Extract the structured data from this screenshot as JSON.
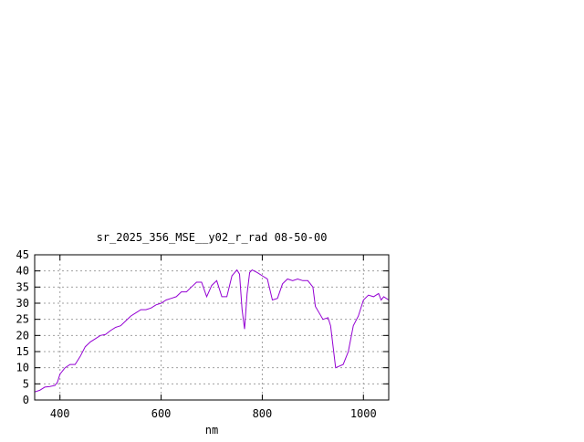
{
  "chart_data": {
    "type": "line",
    "title": "sr_2025_356_MSE__y02_r_rad 08-50-00",
    "xlabel": "nm",
    "ylabel": "",
    "xlim": [
      350,
      1050
    ],
    "ylim": [
      0,
      45
    ],
    "xticks": [
      400,
      600,
      800,
      1000
    ],
    "yticks": [
      0,
      5,
      10,
      15,
      20,
      25,
      30,
      35,
      40,
      45
    ],
    "grid": true,
    "line_color": "#9400d3",
    "series": [
      {
        "x": [
          350,
          360,
          370,
          380,
          390,
          395,
          400,
          410,
          420,
          430,
          440,
          450,
          460,
          470,
          480,
          490,
          500,
          510,
          520,
          530,
          540,
          550,
          560,
          570,
          580,
          590,
          600,
          610,
          620,
          630,
          640,
          650,
          660,
          670,
          680,
          690,
          700,
          710,
          720,
          730,
          740,
          750,
          755,
          760,
          765,
          770,
          775,
          780,
          790,
          800,
          810,
          820,
          830,
          840,
          850,
          860,
          870,
          880,
          890,
          900,
          905,
          920,
          930,
          935,
          945,
          960,
          970,
          980,
          990,
          1000,
          1010,
          1020,
          1030,
          1035,
          1040,
          1050
        ],
        "y": [
          2.5,
          3,
          4,
          4.2,
          4.5,
          5.5,
          8,
          10,
          11,
          11,
          13.5,
          16.5,
          18,
          19,
          20,
          20.3,
          21.5,
          22.5,
          23,
          24.5,
          26,
          27,
          28,
          28,
          28.5,
          29.5,
          30,
          31,
          31.5,
          32,
          33.5,
          33.5,
          35,
          36.5,
          36.5,
          32,
          35.5,
          37,
          32,
          32,
          38.5,
          40.3,
          39,
          28,
          22,
          33,
          39.5,
          40.3,
          39.5,
          38.5,
          37.5,
          31,
          31.5,
          36,
          37.5,
          37,
          37.5,
          37,
          37,
          35,
          29,
          25,
          25.5,
          23,
          10,
          11,
          15,
          23,
          26,
          31,
          32.5,
          32,
          33,
          31,
          32,
          31
        ]
      }
    ]
  }
}
